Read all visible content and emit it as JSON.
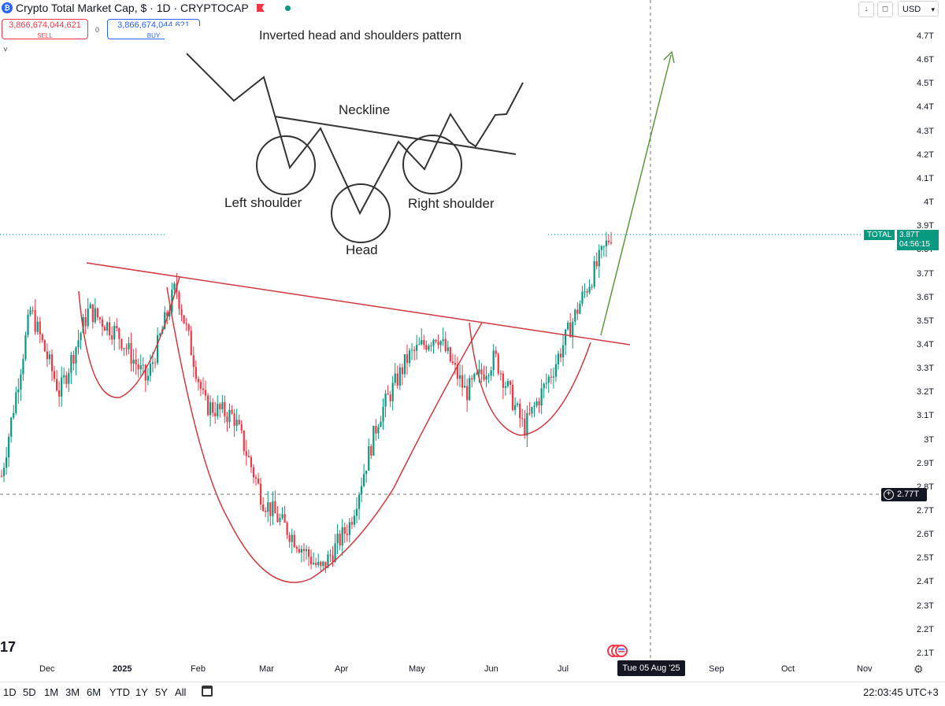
{
  "header": {
    "title": "Crypto Total Market Cap, $ · 1D · CRYPTOCAP",
    "sell_price": "3,866,674,044,621",
    "sell_label": "SELL",
    "buy_price": "3,866,674,044,621",
    "buy_label": "BUY",
    "spread": "0",
    "currency": "USD"
  },
  "inset": {
    "title": "Inverted head and shoulders pattern",
    "neckline": "Neckline",
    "left_shoulder": "Left shoulder",
    "right_shoulder": "Right shoulder",
    "head": "Head"
  },
  "price_axis": [
    "4.7T",
    "4.6T",
    "4.5T",
    "4.4T",
    "4.3T",
    "4.2T",
    "4.1T",
    "4T",
    "3.9T",
    "3.8T",
    "3.7T",
    "3.6T",
    "3.5T",
    "3.4T",
    "3.3T",
    "3.2T",
    "3.1T",
    "3T",
    "2.9T",
    "2.8T",
    "2.7T",
    "2.6T",
    "2.5T",
    "2.4T",
    "2.3T",
    "2.2T",
    "2.1T"
  ],
  "time_axis": [
    "Dec",
    "2025",
    "Feb",
    "Mar",
    "Apr",
    "May",
    "Jun",
    "Jul",
    "Aug",
    "Sep",
    "Oct",
    "Nov"
  ],
  "labels": {
    "symbol_tag": "TOTAL",
    "last_price": "3.87T",
    "countdown": "04:56:15",
    "crosshair_price": "2.77T",
    "crosshair_date": "Tue 05 Aug '25"
  },
  "ranges": [
    "1D",
    "5D",
    "1M",
    "3M",
    "6M",
    "YTD",
    "1Y",
    "5Y",
    "All"
  ],
  "clock": "22:03:45 UTC+3",
  "colors": {
    "up": "#089981",
    "down": "#f23645",
    "pattern_line": "#d0383f",
    "projection": "#5a9a3a"
  },
  "chart_data": {
    "type": "candlestick",
    "title": "Crypto Total Market Cap, $ · 1D · CRYPTOCAP",
    "xlabel": "",
    "ylabel": "",
    "ylim": [
      "2.1T",
      "4.7T"
    ],
    "x_ticks": [
      "Dec",
      "2025",
      "Feb",
      "Mar",
      "Apr",
      "May",
      "Jun",
      "Jul",
      "Aug",
      "Sep",
      "Oct",
      "Nov"
    ],
    "last_price": "3.87T",
    "path_close_trillions": [
      {
        "month": "Nov",
        "close": 2.85
      },
      {
        "month": "Dec",
        "close": 3.55
      },
      {
        "month": "Dec",
        "close": 3.2
      },
      {
        "month": "Dec",
        "close": 3.55
      },
      {
        "month": "2025",
        "close": 3.45
      },
      {
        "month": "Jan",
        "close": 3.25
      },
      {
        "month": "Jan",
        "close": 3.65
      },
      {
        "month": "Feb",
        "close": 3.15
      },
      {
        "month": "Feb",
        "close": 3.1
      },
      {
        "month": "Mar",
        "close": 2.75
      },
      {
        "month": "Mar",
        "close": 2.6
      },
      {
        "month": "Apr",
        "close": 2.45
      },
      {
        "month": "Apr",
        "close": 2.65
      },
      {
        "month": "May",
        "close": 3.1
      },
      {
        "month": "May",
        "close": 3.35
      },
      {
        "month": "May",
        "close": 3.45
      },
      {
        "month": "Jun",
        "close": 3.2
      },
      {
        "month": "Jun",
        "close": 3.35
      },
      {
        "month": "Jun",
        "close": 3.05
      },
      {
        "month": "Jul",
        "close": 3.3
      },
      {
        "month": "Jul",
        "close": 3.6
      },
      {
        "month": "Jul",
        "close": 3.87
      }
    ]
  }
}
